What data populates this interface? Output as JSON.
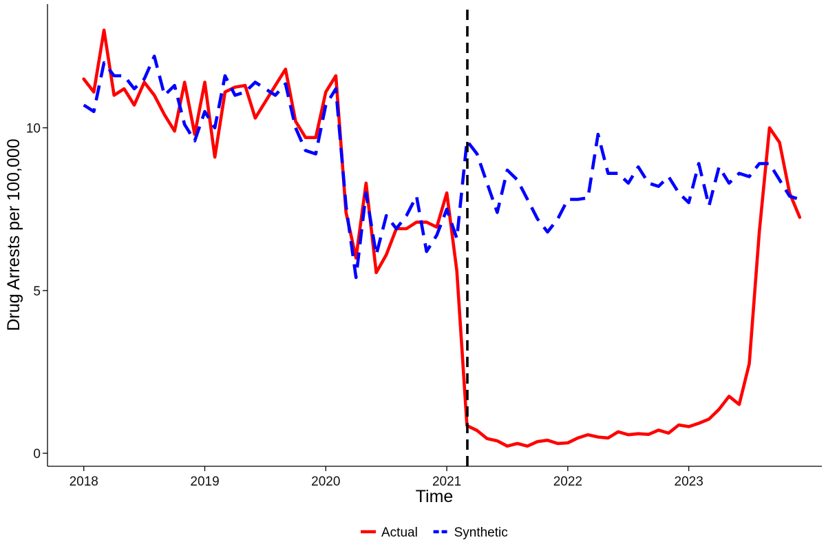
{
  "chart_data": {
    "type": "line",
    "title": "",
    "xlabel": "Time",
    "ylabel": "Drug Arrests per 100,000",
    "xlim": [
      2017.7,
      2024.1
    ],
    "ylim": [
      -0.4,
      13.8
    ],
    "x_ticks": [
      2018,
      2019,
      2020,
      2021,
      2022,
      2023
    ],
    "x_tick_labels": [
      "2018",
      "2019",
      "2020",
      "2021",
      "2022",
      "2023"
    ],
    "y_ticks": [
      0,
      5,
      10
    ],
    "y_tick_labels": [
      "0",
      "5",
      "10"
    ],
    "grid": false,
    "legend_position": "bottom",
    "intervention": {
      "x": 2021.17,
      "style": "dashed",
      "color": "#000000"
    },
    "x": [
      2018.0,
      2018.083,
      2018.167,
      2018.25,
      2018.333,
      2018.417,
      2018.5,
      2018.583,
      2018.667,
      2018.75,
      2018.833,
      2018.917,
      2019.0,
      2019.083,
      2019.167,
      2019.25,
      2019.333,
      2019.417,
      2019.5,
      2019.583,
      2019.667,
      2019.75,
      2019.833,
      2019.917,
      2020.0,
      2020.083,
      2020.167,
      2020.25,
      2020.333,
      2020.417,
      2020.5,
      2020.583,
      2020.667,
      2020.75,
      2020.833,
      2020.917,
      2021.0,
      2021.083,
      2021.167,
      2021.25,
      2021.333,
      2021.417,
      2021.5,
      2021.583,
      2021.667,
      2021.75,
      2021.833,
      2021.917,
      2022.0,
      2022.083,
      2022.167,
      2022.25,
      2022.333,
      2022.417,
      2022.5,
      2022.583,
      2022.667,
      2022.75,
      2022.833,
      2022.917,
      2023.0,
      2023.083,
      2023.167,
      2023.25,
      2023.333,
      2023.417,
      2023.5,
      2023.583,
      2023.667,
      2023.75,
      2023.833,
      2023.917
    ],
    "series": [
      {
        "name": "Actual",
        "color": "#ff0000",
        "dash": "solid",
        "values": [
          11.5,
          11.1,
          13.0,
          11.0,
          11.2,
          10.7,
          11.4,
          11.0,
          10.4,
          9.9,
          11.4,
          9.8,
          11.4,
          9.1,
          11.1,
          11.25,
          11.3,
          10.3,
          10.8,
          11.3,
          11.8,
          10.2,
          9.7,
          9.7,
          11.1,
          11.6,
          7.4,
          6.0,
          8.3,
          5.55,
          6.1,
          6.9,
          6.9,
          7.1,
          7.1,
          6.95,
          8.0,
          5.6,
          0.85,
          0.7,
          0.45,
          0.38,
          0.22,
          0.3,
          0.22,
          0.36,
          0.4,
          0.3,
          0.32,
          0.47,
          0.57,
          0.5,
          0.47,
          0.66,
          0.57,
          0.6,
          0.58,
          0.71,
          0.62,
          0.87,
          0.82,
          0.92,
          1.05,
          1.35,
          1.75,
          1.5,
          2.75,
          6.8,
          10.0,
          9.55,
          8.0,
          7.25
        ]
      },
      {
        "name": "Synthetic",
        "color": "#0000ff",
        "dash": "dashed",
        "values": [
          10.7,
          10.5,
          12.0,
          11.6,
          11.6,
          11.2,
          11.5,
          12.2,
          11.0,
          11.3,
          10.1,
          9.6,
          10.5,
          10.0,
          11.6,
          11.0,
          11.1,
          11.4,
          11.2,
          11.0,
          11.35,
          10.0,
          9.3,
          9.2,
          10.7,
          11.2,
          7.6,
          5.4,
          8.0,
          6.1,
          7.3,
          6.9,
          7.3,
          7.9,
          6.2,
          6.7,
          7.5,
          6.6,
          9.6,
          9.2,
          8.3,
          7.4,
          8.7,
          8.4,
          7.8,
          7.2,
          6.8,
          7.2,
          7.8,
          7.8,
          7.85,
          9.8,
          8.6,
          8.6,
          8.3,
          8.8,
          8.3,
          8.2,
          8.5,
          8.0,
          7.7,
          8.9,
          7.6,
          8.8,
          8.3,
          8.6,
          8.5,
          8.9,
          8.9,
          8.4,
          7.9,
          7.8
        ]
      }
    ]
  }
}
